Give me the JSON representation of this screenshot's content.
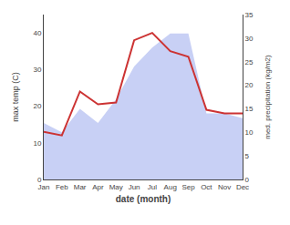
{
  "chart_data": {
    "type": "line",
    "categories": [
      "Jan",
      "Feb",
      "Mar",
      "Apr",
      "May",
      "Jun",
      "Jul",
      "Aug",
      "Sep",
      "Oct",
      "Nov",
      "Dec"
    ],
    "series": [
      {
        "type": "area",
        "color": "#c8d0f5",
        "axis": "y2",
        "values": [
          12,
          10,
          15,
          12,
          17,
          24,
          28,
          31,
          31,
          14,
          14,
          13
        ]
      },
      {
        "type": "line",
        "color": "#cc3333",
        "values": [
          13,
          12,
          24,
          20.5,
          21,
          38,
          40,
          35,
          33.5,
          19,
          18,
          18
        ]
      }
    ],
    "xlabel": "date (month)",
    "ylabel": "max temp (C)",
    "y2label": "med. precipitation (kg/m2)",
    "ylim": [
      0,
      45
    ],
    "yticks": [
      0,
      10,
      20,
      30,
      40
    ],
    "y2lim": [
      0,
      35
    ],
    "y2ticks": [
      0,
      5,
      10,
      15,
      20,
      25,
      30,
      35
    ],
    "grid": false
  }
}
